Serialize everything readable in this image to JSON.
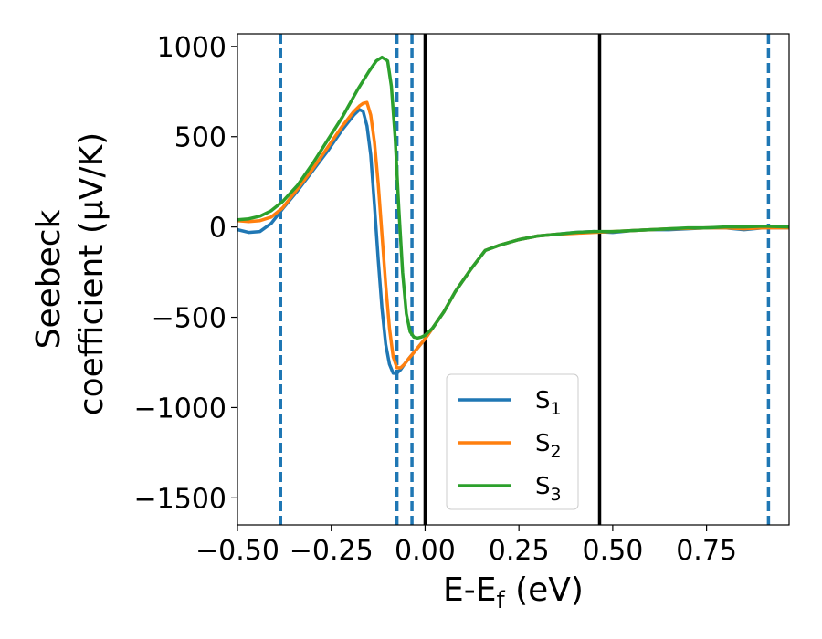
{
  "chart_data": {
    "type": "line",
    "title": "",
    "xlabel": "E-E",
    "xlabel_sub": "f",
    "xlabel_unit": " (eV)",
    "ylabel_line1": "Seebeck",
    "ylabel_line2": "coefficient  (μV/K)",
    "xlim": [
      -0.5,
      0.97
    ],
    "ylim": [
      -1650,
      1070
    ],
    "x_ticks": [
      -0.5,
      -0.25,
      0.0,
      0.25,
      0.5,
      0.75
    ],
    "x_tick_labels": [
      "−0.50",
      "−0.25",
      "0.00",
      "0.25",
      "0.50",
      "0.75"
    ],
    "y_ticks": [
      1000,
      500,
      0,
      -500,
      -1000,
      -1500
    ],
    "y_tick_labels": [
      "1000",
      "500",
      "0",
      "−500",
      "−1000",
      "−1500"
    ],
    "vlines_dashed": [
      -0.385,
      -0.075,
      -0.035,
      0.915
    ],
    "vlines_solid": [
      0.0,
      0.465
    ],
    "legend_position": "lower-center",
    "series": [
      {
        "name": "S",
        "sub": "1",
        "color": "#1f77b4",
        "x": [
          -0.5,
          -0.47,
          -0.44,
          -0.41,
          -0.38,
          -0.34,
          -0.3,
          -0.26,
          -0.22,
          -0.19,
          -0.175,
          -0.165,
          -0.155,
          -0.145,
          -0.135,
          -0.125,
          -0.115,
          -0.105,
          -0.095,
          -0.085,
          -0.075,
          -0.065,
          -0.055,
          -0.04,
          -0.02,
          0.0,
          0.02,
          0.05,
          0.08,
          0.12,
          0.16,
          0.2,
          0.25,
          0.3,
          0.35,
          0.4,
          0.45,
          0.5,
          0.55,
          0.6,
          0.65,
          0.7,
          0.75,
          0.8,
          0.85,
          0.9,
          0.97
        ],
        "values": [
          -15,
          -30,
          -25,
          20,
          100,
          200,
          310,
          420,
          540,
          620,
          650,
          640,
          560,
          400,
          120,
          -180,
          -450,
          -650,
          -760,
          -810,
          -810,
          -790,
          -760,
          -720,
          -670,
          -620,
          -560,
          -470,
          -360,
          -240,
          -130,
          -100,
          -70,
          -50,
          -40,
          -30,
          -25,
          -30,
          -20,
          -15,
          -15,
          -10,
          -5,
          -5,
          -15,
          -5,
          -5
        ]
      },
      {
        "name": "S",
        "sub": "2",
        "color": "#ff7f0e",
        "x": [
          -0.5,
          -0.47,
          -0.44,
          -0.41,
          -0.38,
          -0.34,
          -0.3,
          -0.26,
          -0.22,
          -0.19,
          -0.175,
          -0.165,
          -0.155,
          -0.145,
          -0.135,
          -0.125,
          -0.115,
          -0.105,
          -0.095,
          -0.085,
          -0.075,
          -0.065,
          -0.055,
          -0.04,
          -0.02,
          0.0,
          0.02,
          0.05,
          0.08,
          0.12,
          0.16,
          0.2,
          0.25,
          0.3,
          0.35,
          0.4,
          0.45,
          0.5,
          0.55,
          0.6,
          0.65,
          0.7,
          0.75,
          0.8,
          0.85,
          0.9,
          0.97
        ],
        "values": [
          35,
          30,
          35,
          55,
          105,
          210,
          320,
          440,
          560,
          640,
          670,
          685,
          690,
          620,
          470,
          240,
          -40,
          -320,
          -560,
          -720,
          -780,
          -780,
          -760,
          -720,
          -670,
          -620,
          -560,
          -470,
          -360,
          -240,
          -130,
          -100,
          -70,
          -50,
          -40,
          -35,
          -30,
          -25,
          -20,
          -15,
          -10,
          -8,
          -5,
          -5,
          -10,
          -5,
          -5
        ]
      },
      {
        "name": "S",
        "sub": "3",
        "color": "#2ca02c",
        "x": [
          -0.5,
          -0.47,
          -0.44,
          -0.41,
          -0.38,
          -0.34,
          -0.3,
          -0.26,
          -0.22,
          -0.18,
          -0.15,
          -0.13,
          -0.115,
          -0.1,
          -0.09,
          -0.08,
          -0.07,
          -0.06,
          -0.05,
          -0.04,
          -0.03,
          -0.02,
          -0.01,
          0.0,
          0.02,
          0.05,
          0.08,
          0.12,
          0.16,
          0.2,
          0.25,
          0.3,
          0.35,
          0.4,
          0.45,
          0.5,
          0.55,
          0.6,
          0.65,
          0.7,
          0.75,
          0.8,
          0.85,
          0.9,
          0.97
        ],
        "values": [
          40,
          45,
          60,
          90,
          140,
          230,
          350,
          480,
          610,
          760,
          860,
          920,
          940,
          920,
          780,
          500,
          100,
          -250,
          -480,
          -580,
          -610,
          -615,
          -610,
          -600,
          -560,
          -470,
          -360,
          -240,
          -130,
          -100,
          -70,
          -50,
          -40,
          -30,
          -25,
          -25,
          -20,
          -15,
          -10,
          -5,
          -5,
          0,
          0,
          5,
          0
        ]
      }
    ]
  }
}
